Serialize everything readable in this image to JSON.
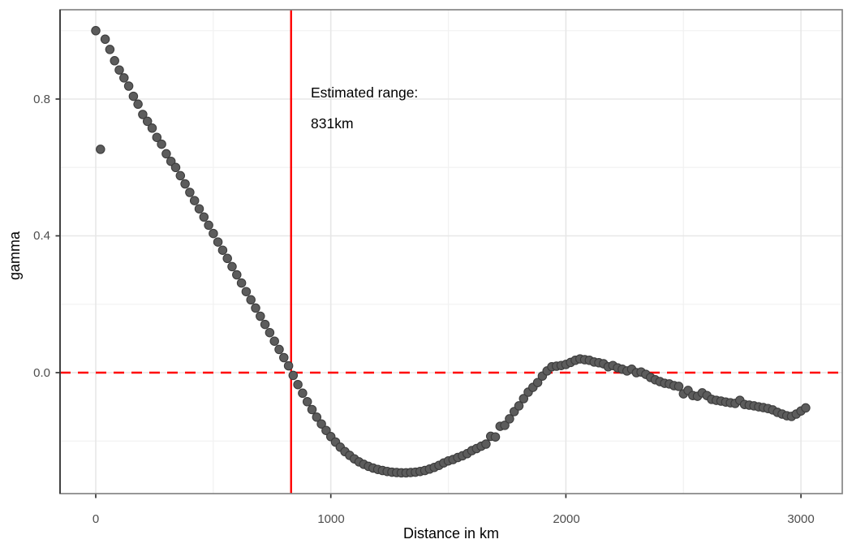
{
  "chart_data": {
    "type": "scatter",
    "title": "",
    "xlabel": "Distance in km",
    "ylabel": "gamma",
    "x_tick_labels": [
      "0",
      "1000",
      "2000",
      "3000"
    ],
    "x_ticks_km": [
      0,
      1000,
      2000,
      3000
    ],
    "x_minor_ticks_km": [
      500,
      1500,
      2500
    ],
    "y_tick_labels": [
      "0.0",
      "0.4",
      "0.8"
    ],
    "y_ticks": [
      0.0,
      0.4,
      0.8
    ],
    "y_minor_ticks": [
      -0.2,
      0.2,
      0.6,
      1.0
    ],
    "xlim_km": [
      -152,
      3175
    ],
    "ylim": [
      -0.354,
      1.062
    ],
    "grid": true,
    "legend": "none",
    "annotation": {
      "line1": "Estimated range:",
      "line2": "831km"
    },
    "vline": {
      "x_km": 831,
      "style": "solid"
    },
    "hline": {
      "y": 0,
      "style": "dashed"
    },
    "colors": {
      "reference_line": "#ff0000",
      "point_fill": "#5c5c5c",
      "point_stroke": "#3c3c3c",
      "grid_major": "#e7e7e7",
      "grid_minor": "#f2f2f2",
      "panel_border": "#858585",
      "axis_line": "#2e2e2e",
      "tick_mark": "#333333",
      "tick_text": "#4d4d4d",
      "background": "#ffffff"
    },
    "points": [
      [
        0,
        1.0
      ],
      [
        20,
        0.653
      ],
      [
        40,
        0.975
      ],
      [
        60,
        0.945
      ],
      [
        80,
        0.912
      ],
      [
        100,
        0.885
      ],
      [
        120,
        0.862
      ],
      [
        140,
        0.838
      ],
      [
        160,
        0.808
      ],
      [
        180,
        0.785
      ],
      [
        200,
        0.755
      ],
      [
        220,
        0.735
      ],
      [
        240,
        0.715
      ],
      [
        260,
        0.688
      ],
      [
        280,
        0.668
      ],
      [
        300,
        0.64
      ],
      [
        320,
        0.618
      ],
      [
        340,
        0.6
      ],
      [
        360,
        0.576
      ],
      [
        380,
        0.552
      ],
      [
        400,
        0.527
      ],
      [
        420,
        0.503
      ],
      [
        440,
        0.479
      ],
      [
        460,
        0.455
      ],
      [
        480,
        0.431
      ],
      [
        500,
        0.407
      ],
      [
        520,
        0.382
      ],
      [
        540,
        0.358
      ],
      [
        560,
        0.334
      ],
      [
        580,
        0.31
      ],
      [
        600,
        0.286
      ],
      [
        620,
        0.262
      ],
      [
        640,
        0.237
      ],
      [
        660,
        0.213
      ],
      [
        680,
        0.189
      ],
      [
        700,
        0.165
      ],
      [
        720,
        0.141
      ],
      [
        740,
        0.117
      ],
      [
        760,
        0.092
      ],
      [
        780,
        0.068
      ],
      [
        800,
        0.044
      ],
      [
        820,
        0.02
      ],
      [
        840,
        -0.008
      ],
      [
        860,
        -0.035
      ],
      [
        880,
        -0.06
      ],
      [
        900,
        -0.085
      ],
      [
        920,
        -0.108
      ],
      [
        940,
        -0.13
      ],
      [
        960,
        -0.15
      ],
      [
        980,
        -0.169
      ],
      [
        1000,
        -0.187
      ],
      [
        1020,
        -0.203
      ],
      [
        1040,
        -0.218
      ],
      [
        1060,
        -0.231
      ],
      [
        1080,
        -0.242
      ],
      [
        1100,
        -0.252
      ],
      [
        1120,
        -0.261
      ],
      [
        1140,
        -0.268
      ],
      [
        1160,
        -0.274
      ],
      [
        1180,
        -0.279
      ],
      [
        1200,
        -0.283
      ],
      [
        1220,
        -0.286
      ],
      [
        1240,
        -0.289
      ],
      [
        1260,
        -0.291
      ],
      [
        1280,
        -0.292
      ],
      [
        1300,
        -0.293
      ],
      [
        1320,
        -0.293
      ],
      [
        1340,
        -0.292
      ],
      [
        1360,
        -0.291
      ],
      [
        1380,
        -0.289
      ],
      [
        1400,
        -0.286
      ],
      [
        1420,
        -0.282
      ],
      [
        1440,
        -0.277
      ],
      [
        1460,
        -0.271
      ],
      [
        1480,
        -0.264
      ],
      [
        1500,
        -0.258
      ],
      [
        1520,
        -0.254
      ],
      [
        1540,
        -0.248
      ],
      [
        1560,
        -0.243
      ],
      [
        1580,
        -0.237
      ],
      [
        1600,
        -0.228
      ],
      [
        1620,
        -0.222
      ],
      [
        1640,
        -0.215
      ],
      [
        1660,
        -0.209
      ],
      [
        1680,
        -0.186
      ],
      [
        1700,
        -0.188
      ],
      [
        1720,
        -0.157
      ],
      [
        1740,
        -0.154
      ],
      [
        1760,
        -0.135
      ],
      [
        1780,
        -0.114
      ],
      [
        1800,
        -0.097
      ],
      [
        1820,
        -0.076
      ],
      [
        1840,
        -0.057
      ],
      [
        1860,
        -0.043
      ],
      [
        1880,
        -0.029
      ],
      [
        1900,
        -0.01
      ],
      [
        1920,
        0.005
      ],
      [
        1940,
        0.017
      ],
      [
        1960,
        0.019
      ],
      [
        1980,
        0.021
      ],
      [
        2000,
        0.024
      ],
      [
        2020,
        0.03
      ],
      [
        2040,
        0.036
      ],
      [
        2060,
        0.04
      ],
      [
        2080,
        0.038
      ],
      [
        2100,
        0.036
      ],
      [
        2120,
        0.031
      ],
      [
        2140,
        0.029
      ],
      [
        2160,
        0.026
      ],
      [
        2180,
        0.017
      ],
      [
        2200,
        0.021
      ],
      [
        2220,
        0.014
      ],
      [
        2240,
        0.01
      ],
      [
        2260,
        0.005
      ],
      [
        2280,
        0.01
      ],
      [
        2300,
        0.0
      ],
      [
        2320,
        0.002
      ],
      [
        2340,
        -0.005
      ],
      [
        2360,
        -0.014
      ],
      [
        2380,
        -0.021
      ],
      [
        2400,
        -0.026
      ],
      [
        2420,
        -0.031
      ],
      [
        2440,
        -0.033
      ],
      [
        2460,
        -0.038
      ],
      [
        2480,
        -0.04
      ],
      [
        2500,
        -0.062
      ],
      [
        2520,
        -0.052
      ],
      [
        2540,
        -0.067
      ],
      [
        2560,
        -0.069
      ],
      [
        2580,
        -0.059
      ],
      [
        2600,
        -0.067
      ],
      [
        2620,
        -0.078
      ],
      [
        2640,
        -0.081
      ],
      [
        2660,
        -0.083
      ],
      [
        2680,
        -0.086
      ],
      [
        2700,
        -0.088
      ],
      [
        2720,
        -0.09
      ],
      [
        2740,
        -0.081
      ],
      [
        2760,
        -0.093
      ],
      [
        2780,
        -0.095
      ],
      [
        2800,
        -0.097
      ],
      [
        2820,
        -0.1
      ],
      [
        2840,
        -0.102
      ],
      [
        2860,
        -0.105
      ],
      [
        2880,
        -0.109
      ],
      [
        2900,
        -0.116
      ],
      [
        2920,
        -0.121
      ],
      [
        2940,
        -0.126
      ],
      [
        2960,
        -0.128
      ],
      [
        2980,
        -0.121
      ],
      [
        3000,
        -0.112
      ],
      [
        3020,
        -0.103
      ]
    ]
  }
}
